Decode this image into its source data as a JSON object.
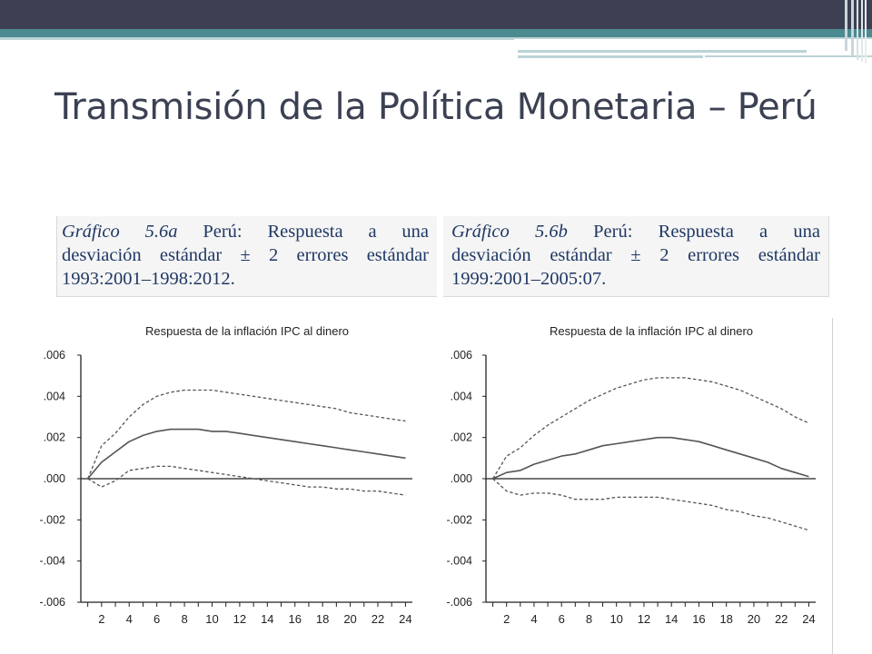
{
  "slide": {
    "title": "Transmisión de la Política Monetaria – Perú"
  },
  "captions": [
    {
      "label": "Gráfico 5.6a",
      "lines": [
        "Perú: Respuesta a una",
        "desviación estándar ± 2 errores estándar",
        "1993:2001–1998:2012."
      ]
    },
    {
      "label": "Gráfico 5.6b",
      "lines": [
        "Perú: Respuesta a una",
        "desviación estándar ± 2 errores estándar",
        "1999:2001–2005:07."
      ]
    }
  ],
  "colors": {
    "band_dark": "#3d3f52",
    "band_teal": "#4a8a90",
    "band_light": "#bcd3d6",
    "title": "#3b4153",
    "caption_text": "#1f3864",
    "chart_line": "#555555",
    "axis": "#222222"
  },
  "chart_data": [
    {
      "type": "line",
      "title": "Respuesta de la inflación IPC al dinero",
      "xlabel": "",
      "ylabel": "",
      "x": [
        1,
        2,
        3,
        4,
        5,
        6,
        7,
        8,
        9,
        10,
        11,
        12,
        13,
        14,
        15,
        16,
        17,
        18,
        19,
        20,
        21,
        22,
        23,
        24
      ],
      "xticks": [
        2,
        4,
        6,
        8,
        10,
        12,
        14,
        16,
        18,
        20,
        22,
        24
      ],
      "xlim": [
        0.5,
        24.5
      ],
      "ylim": [
        -0.006,
        0.006
      ],
      "yticks": [
        {
          "value": 0.006,
          "label": ".006"
        },
        {
          "value": 0.004,
          "label": ".004"
        },
        {
          "value": 0.002,
          "label": ".002"
        },
        {
          "value": 0.0,
          "label": ".000"
        },
        {
          "value": -0.002,
          "label": "-.002"
        },
        {
          "value": -0.004,
          "label": "-.004"
        },
        {
          "value": -0.006,
          "label": "-.006"
        }
      ],
      "zero_line": true,
      "grid": false,
      "series": [
        {
          "style": "dashed",
          "values": [
            0.0,
            0.0016,
            0.0022,
            0.003,
            0.0036,
            0.004,
            0.0042,
            0.0043,
            0.0043,
            0.0043,
            0.0042,
            0.0041,
            0.004,
            0.0039,
            0.0038,
            0.0037,
            0.0036,
            0.0035,
            0.0034,
            0.0032,
            0.0031,
            0.003,
            0.0029,
            0.0028
          ]
        },
        {
          "style": "solid",
          "values": [
            0.0,
            0.0008,
            0.0013,
            0.0018,
            0.0021,
            0.0023,
            0.0024,
            0.0024,
            0.0024,
            0.0023,
            0.0023,
            0.0022,
            0.0021,
            0.002,
            0.0019,
            0.0018,
            0.0017,
            0.0016,
            0.0015,
            0.0014,
            0.0013,
            0.0012,
            0.0011,
            0.001
          ]
        },
        {
          "style": "dashed",
          "values": [
            0.0,
            -0.0004,
            -0.0001,
            0.0004,
            0.0005,
            0.0006,
            0.0006,
            0.0005,
            0.0004,
            0.0003,
            0.0002,
            0.0001,
            0.0,
            -0.0001,
            -0.0002,
            -0.0003,
            -0.0004,
            -0.0004,
            -0.0005,
            -0.0005,
            -0.0006,
            -0.0006,
            -0.0007,
            -0.0008
          ]
        }
      ]
    },
    {
      "type": "line",
      "title": "Respuesta de la inflación IPC al dinero",
      "xlabel": "",
      "ylabel": "",
      "x": [
        1,
        2,
        3,
        4,
        5,
        6,
        7,
        8,
        9,
        10,
        11,
        12,
        13,
        14,
        15,
        16,
        17,
        18,
        19,
        20,
        21,
        22,
        23,
        24
      ],
      "xticks": [
        2,
        4,
        6,
        8,
        10,
        12,
        14,
        16,
        18,
        20,
        22,
        24
      ],
      "xlim": [
        0.5,
        24.5
      ],
      "ylim": [
        -0.006,
        0.006
      ],
      "yticks": [
        {
          "value": 0.006,
          "label": ".006"
        },
        {
          "value": 0.004,
          "label": ".004"
        },
        {
          "value": 0.002,
          "label": ".002"
        },
        {
          "value": 0.0,
          "label": ".000"
        },
        {
          "value": -0.002,
          "label": "-.002"
        },
        {
          "value": -0.004,
          "label": "-.004"
        },
        {
          "value": -0.006,
          "label": "-.006"
        }
      ],
      "zero_line": true,
      "grid": false,
      "series": [
        {
          "style": "dashed",
          "values": [
            0.0,
            0.0011,
            0.0015,
            0.0021,
            0.0026,
            0.003,
            0.0034,
            0.0038,
            0.0041,
            0.0044,
            0.0046,
            0.0048,
            0.0049,
            0.0049,
            0.0049,
            0.0048,
            0.0047,
            0.0045,
            0.0043,
            0.004,
            0.0037,
            0.0034,
            0.003,
            0.0027
          ]
        },
        {
          "style": "solid",
          "values": [
            0.0,
            0.0003,
            0.0004,
            0.0007,
            0.0009,
            0.0011,
            0.0012,
            0.0014,
            0.0016,
            0.0017,
            0.0018,
            0.0019,
            0.002,
            0.002,
            0.0019,
            0.0018,
            0.0016,
            0.0014,
            0.0012,
            0.001,
            0.0008,
            0.0005,
            0.0003,
            0.0001
          ]
        },
        {
          "style": "dashed",
          "values": [
            0.0,
            -0.0006,
            -0.0008,
            -0.0007,
            -0.0007,
            -0.0008,
            -0.001,
            -0.001,
            -0.001,
            -0.0009,
            -0.0009,
            -0.0009,
            -0.0009,
            -0.001,
            -0.0011,
            -0.0012,
            -0.0013,
            -0.0015,
            -0.0016,
            -0.0018,
            -0.0019,
            -0.0021,
            -0.0023,
            -0.0025
          ]
        }
      ]
    }
  ]
}
